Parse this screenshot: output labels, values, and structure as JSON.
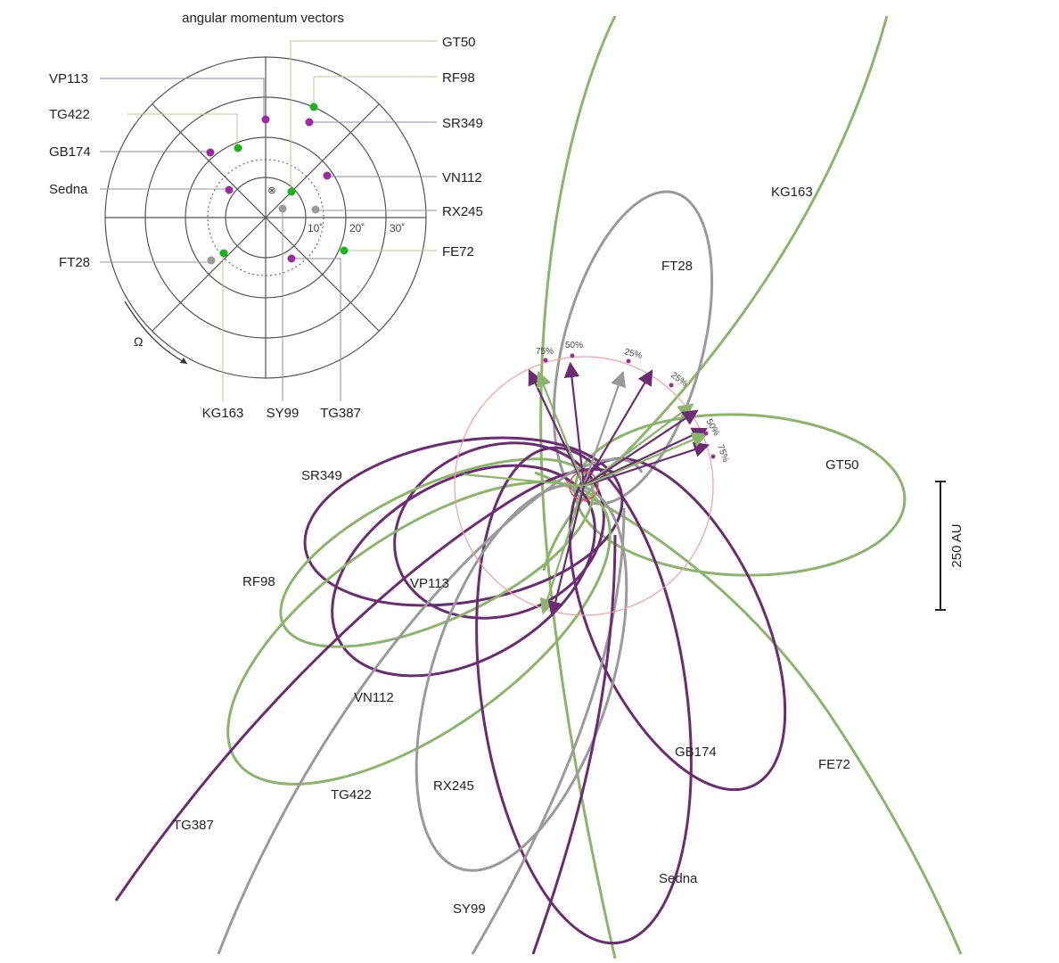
{
  "colors": {
    "green": "#8ab56a",
    "purple": "#6b2c72",
    "gray": "#9a9a9a",
    "dot_green": "#1db31d",
    "dot_purple": "#9a2ca0",
    "dot_gray": "#9a9a9a",
    "red_circle": "#f3a0a0",
    "inner_red": "#e05050",
    "axis_line": "#555555"
  },
  "inset": {
    "title": "angular momentum vectors",
    "ring_labels": [
      "10˚",
      "20˚",
      "30˚"
    ],
    "omega_label": "Ω",
    "left_labels": [
      "VP113",
      "TG422",
      "GB174",
      "Sedna",
      "FT28"
    ],
    "right_labels": [
      "GT50",
      "RF98",
      "SR349",
      "VN112",
      "RX245",
      "FE72"
    ],
    "bottom_labels": [
      "KG163",
      "SY99",
      "TG387"
    ]
  },
  "orbit_labels": {
    "KG163": "KG163",
    "FT28": "FT28",
    "GT50": "GT50",
    "SR349": "SR349",
    "RF98": "RF98",
    "VP113": "VP113",
    "VN112": "VN112",
    "GB174": "GB174",
    "FE72": "FE72",
    "RX245": "RX245",
    "TG422": "TG422",
    "TG387": "TG387",
    "Sedna": "Sedna",
    "SY99": "SY99"
  },
  "percent_marks": [
    "75%",
    "50%",
    "25%",
    "25%",
    "50%",
    "75%"
  ],
  "scale_bar": {
    "label": "250 AU"
  }
}
